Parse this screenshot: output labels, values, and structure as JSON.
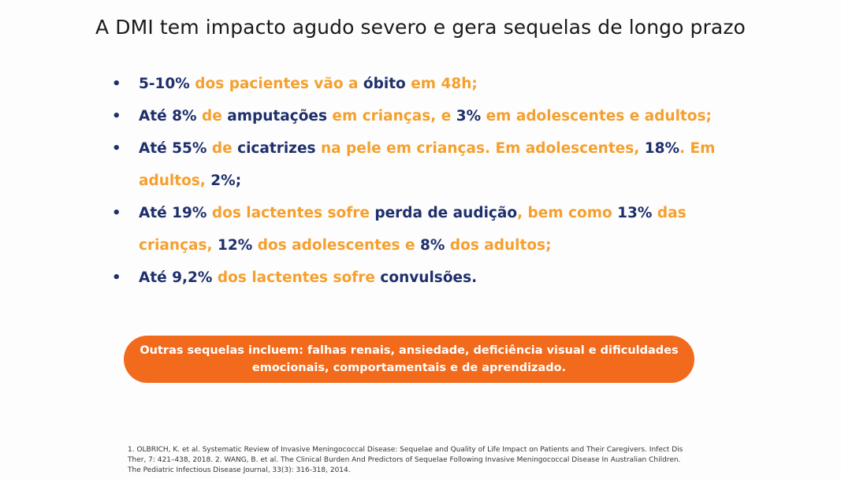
{
  "title": "A DMI tem impacto agudo severo e gera sequelas de longo prazo",
  "bullets": [
    {
      "parts": [
        {
          "text": "5-10%",
          "color": "navy"
        },
        {
          "text": " dos pacientes vão a ",
          "color": "orange"
        },
        {
          "text": "óbito",
          "color": "navy"
        },
        {
          "text": " em 48h;",
          "color": "orange"
        }
      ]
    },
    {
      "parts": [
        {
          "text": "Até 8%",
          "color": "navy"
        },
        {
          "text": " de ",
          "color": "orange"
        },
        {
          "text": "amputações",
          "color": "navy"
        },
        {
          "text": " em crianças, e ",
          "color": "orange"
        },
        {
          "text": "3%",
          "color": "navy"
        },
        {
          "text": " em adolescentes e adultos;",
          "color": "orange"
        }
      ]
    },
    {
      "parts": [
        {
          "text": "Até 55%",
          "color": "navy"
        },
        {
          "text": " de ",
          "color": "orange"
        },
        {
          "text": "cicatrizes",
          "color": "navy"
        },
        {
          "text": " na pele em crianças. Em adolescentes, ",
          "color": "orange"
        },
        {
          "text": "18%",
          "color": "navy"
        },
        {
          "text": ". Em adultos, ",
          "color": "orange"
        },
        {
          "text": "2%",
          "color": "navy"
        },
        {
          "text": ";",
          "color": "navy"
        }
      ]
    },
    {
      "parts": [
        {
          "text": "Até 19%",
          "color": "navy"
        },
        {
          "text": " dos lactentes sofre ",
          "color": "orange"
        },
        {
          "text": "perda de audição",
          "color": "navy"
        },
        {
          "text": ", bem como ",
          "color": "orange"
        },
        {
          "text": "13%",
          "color": "navy"
        },
        {
          "text": " das crianças, ",
          "color": "orange"
        },
        {
          "text": "12%",
          "color": "navy"
        },
        {
          "text": " dos adolescentes e ",
          "color": "orange"
        },
        {
          "text": "8%",
          "color": "navy"
        },
        {
          "text": " dos adultos;",
          "color": "orange"
        }
      ]
    },
    {
      "parts": [
        {
          "text": "Até 9,2%",
          "color": "navy"
        },
        {
          "text": " dos lactentes sofre ",
          "color": "orange"
        },
        {
          "text": "convulsões.",
          "color": "navy"
        }
      ]
    }
  ],
  "callout": {
    "line1": "Outras sequelas incluem: falhas renais, ansiedade, deficiência visual e dificuldades",
    "line2": "emocionais, comportamentais e de aprendizado."
  },
  "references": {
    "line1": "1. OLBRICH, K. et al. Systematic Review of Invasive Meningococcal Disease: Sequelae and Quality of Life Impact on Patients and Their Caregivers. Infect Dis",
    "line2": "Ther, 7: 421–438, 2018. 2. WANG, B. et al. The Clinical Burden And Predictors of Sequelae Following Invasive Meningococcal Disease In Australian Children.",
    "line3": "The Pediatric Infectious Disease Journal, 33(3): 316-318, 2014."
  },
  "colors": {
    "navy": "#1e2f6b",
    "orange": "#f5a02e",
    "callout_bg": "#f26a1b"
  }
}
